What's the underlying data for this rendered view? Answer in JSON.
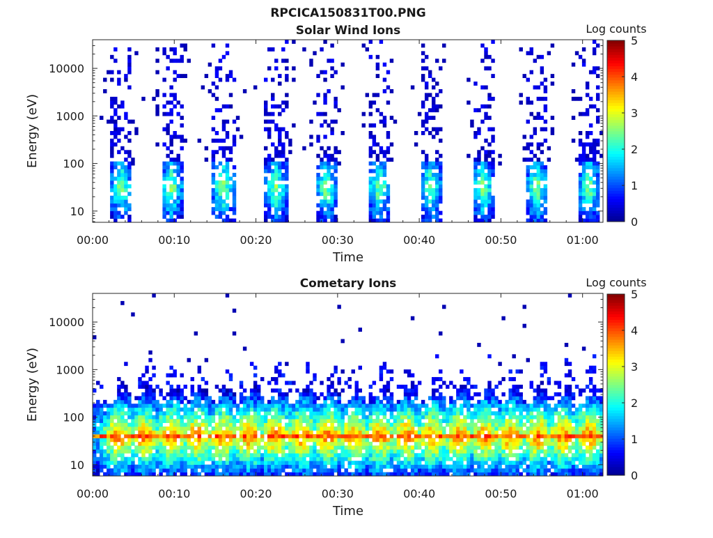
{
  "figure": {
    "title": "RPCICA150831T00.PNG"
  },
  "colormap": [
    "#00008f",
    "#0000ff",
    "#0080ff",
    "#00ffff",
    "#80ff80",
    "#ffff00",
    "#ff8000",
    "#ff0000",
    "#800000"
  ],
  "chart_data": [
    {
      "type": "heatmap",
      "title": "Solar Wind Ions",
      "xlabel": "Time",
      "ylabel": "Energy (eV)",
      "x_range_minutes": [
        0,
        62.5
      ],
      "y_scale": "log",
      "y_range_ev": [
        5.8,
        40000
      ],
      "x_ticks": [
        {
          "minutes": 0,
          "label": "00:00"
        },
        {
          "minutes": 10,
          "label": "00:10"
        },
        {
          "minutes": 20,
          "label": "00:20"
        },
        {
          "minutes": 30,
          "label": "00:30"
        },
        {
          "minutes": 40,
          "label": "00:40"
        },
        {
          "minutes": 50,
          "label": "00:50"
        },
        {
          "minutes": 60,
          "label": "01:00"
        }
      ],
      "y_ticks": [
        {
          "value": 10,
          "label": "10"
        },
        {
          "value": 100,
          "label": "100"
        },
        {
          "value": 1000,
          "label": "1000"
        },
        {
          "value": 10000,
          "label": "10000"
        }
      ],
      "colorbar": {
        "title": "Log counts",
        "range": [
          0,
          5
        ],
        "ticks": [
          "0",
          "1",
          "2",
          "3",
          "4",
          "5"
        ]
      },
      "burst_centers_minutes": [
        3.5,
        9.7,
        16.0,
        22.5,
        28.6,
        35.1,
        41.4,
        47.8,
        54.4,
        60.8
      ],
      "peak_energy_ev": 40,
      "peak_log_counts": 2.7
    },
    {
      "type": "heatmap",
      "title": "Cometary Ions",
      "xlabel": "Time",
      "ylabel": "Energy (eV)",
      "x_range_minutes": [
        0,
        62.5
      ],
      "y_scale": "log",
      "y_range_ev": [
        5.8,
        40000
      ],
      "x_ticks": [
        {
          "minutes": 0,
          "label": "00:00"
        },
        {
          "minutes": 10,
          "label": "00:10"
        },
        {
          "minutes": 20,
          "label": "00:20"
        },
        {
          "minutes": 30,
          "label": "00:30"
        },
        {
          "minutes": 40,
          "label": "00:40"
        },
        {
          "minutes": 50,
          "label": "00:50"
        },
        {
          "minutes": 60,
          "label": "01:00"
        }
      ],
      "y_ticks": [
        {
          "value": 10,
          "label": "10"
        },
        {
          "value": 100,
          "label": "100"
        },
        {
          "value": 1000,
          "label": "1000"
        },
        {
          "value": 10000,
          "label": "10000"
        }
      ],
      "colorbar": {
        "title": "Log counts",
        "range": [
          0,
          5
        ],
        "ticks": [
          "0",
          "1",
          "2",
          "3",
          "4",
          "5"
        ]
      },
      "burst_centers_minutes": [
        3.2,
        6.3,
        9.6,
        12.8,
        16.0,
        19.2,
        22.4,
        25.6,
        28.8,
        32.0,
        35.2,
        38.4,
        41.6,
        44.8,
        48.0,
        51.2,
        54.4,
        57.6,
        60.8
      ],
      "peak_energy_ev": 40,
      "peak_log_counts": 3.8
    }
  ]
}
